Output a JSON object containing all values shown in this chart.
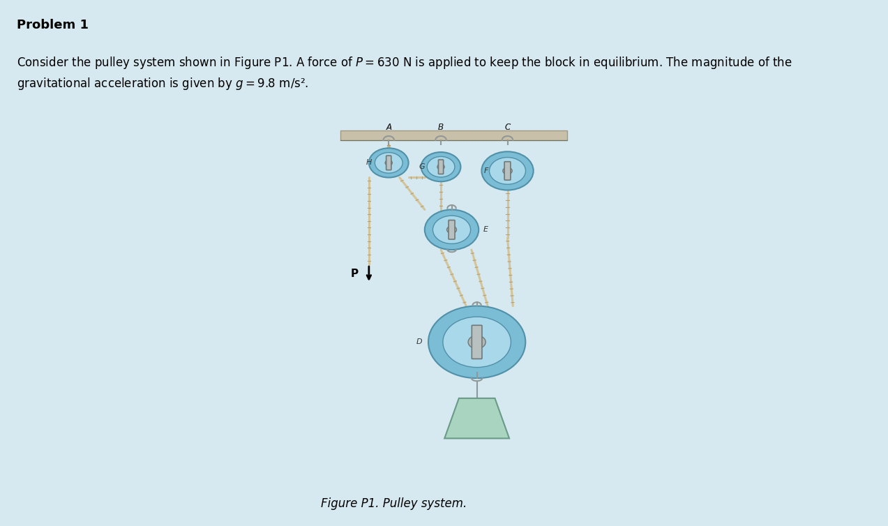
{
  "bg_color": "#d6e9f0",
  "panel_bg": "#ffffff",
  "title": "Problem 1",
  "body_text": "Consider the pulley system shown in Figure P1. A force of $P = 630$ N is applied to keep the block in equilibrium. The magnitude of the\ngravitational acceleration is given by $g = 9.8$ m/s².",
  "caption": "Figure P1. Pulley system.",
  "title_fontsize": 13,
  "body_fontsize": 12,
  "caption_fontsize": 12,
  "ceiling_color": "#c8c0a8",
  "rope_color": "#d4c49a",
  "pulley_outer_color": "#7bbdd4",
  "pulley_inner_color": "#a8d8ea",
  "pulley_hub_color": "#b0b8b8",
  "block_color": "#a8d4c0",
  "hook_color": "#909898",
  "arrow_color": "#111111",
  "label_color": "#333333"
}
